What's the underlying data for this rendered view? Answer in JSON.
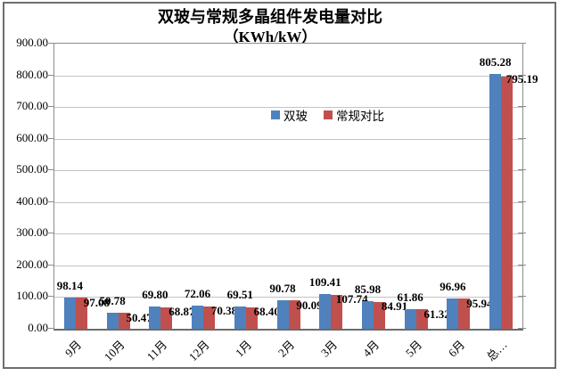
{
  "window": {
    "background": "#ffffff",
    "border_color": "#6e6e6e"
  },
  "chart_data": {
    "type": "bar",
    "title": "双玻与常规多晶组件发电量对比",
    "subtitle": "（KWh/kW）",
    "unit": "KWh/kW",
    "categories": [
      "9月",
      "10月",
      "11月",
      "12月",
      "1月",
      "2月",
      "3月",
      "4月",
      "5月",
      "6月",
      "总…"
    ],
    "series": [
      {
        "name": "双玻",
        "color": "#4F81BD",
        "values": [
          98.14,
          50.78,
          69.8,
          72.06,
          69.51,
          90.78,
          109.41,
          85.98,
          61.86,
          96.96,
          805.28
        ]
      },
      {
        "name": "常规对比",
        "color": "#C0504D",
        "values": [
          97.08,
          50.47,
          68.87,
          70.38,
          68.4,
          90.09,
          107.74,
          84.91,
          61.32,
          95.94,
          795.19
        ]
      }
    ],
    "ylim": [
      0,
      900
    ],
    "ytick_step": 100,
    "ytick_decimals": 2,
    "value_label_decimals": 2,
    "grid": true,
    "legend_position": "inside-top-center",
    "grid_color": "#c3c3c3",
    "axis_color": "#8c8c8c",
    "value_labels_shown": true
  }
}
